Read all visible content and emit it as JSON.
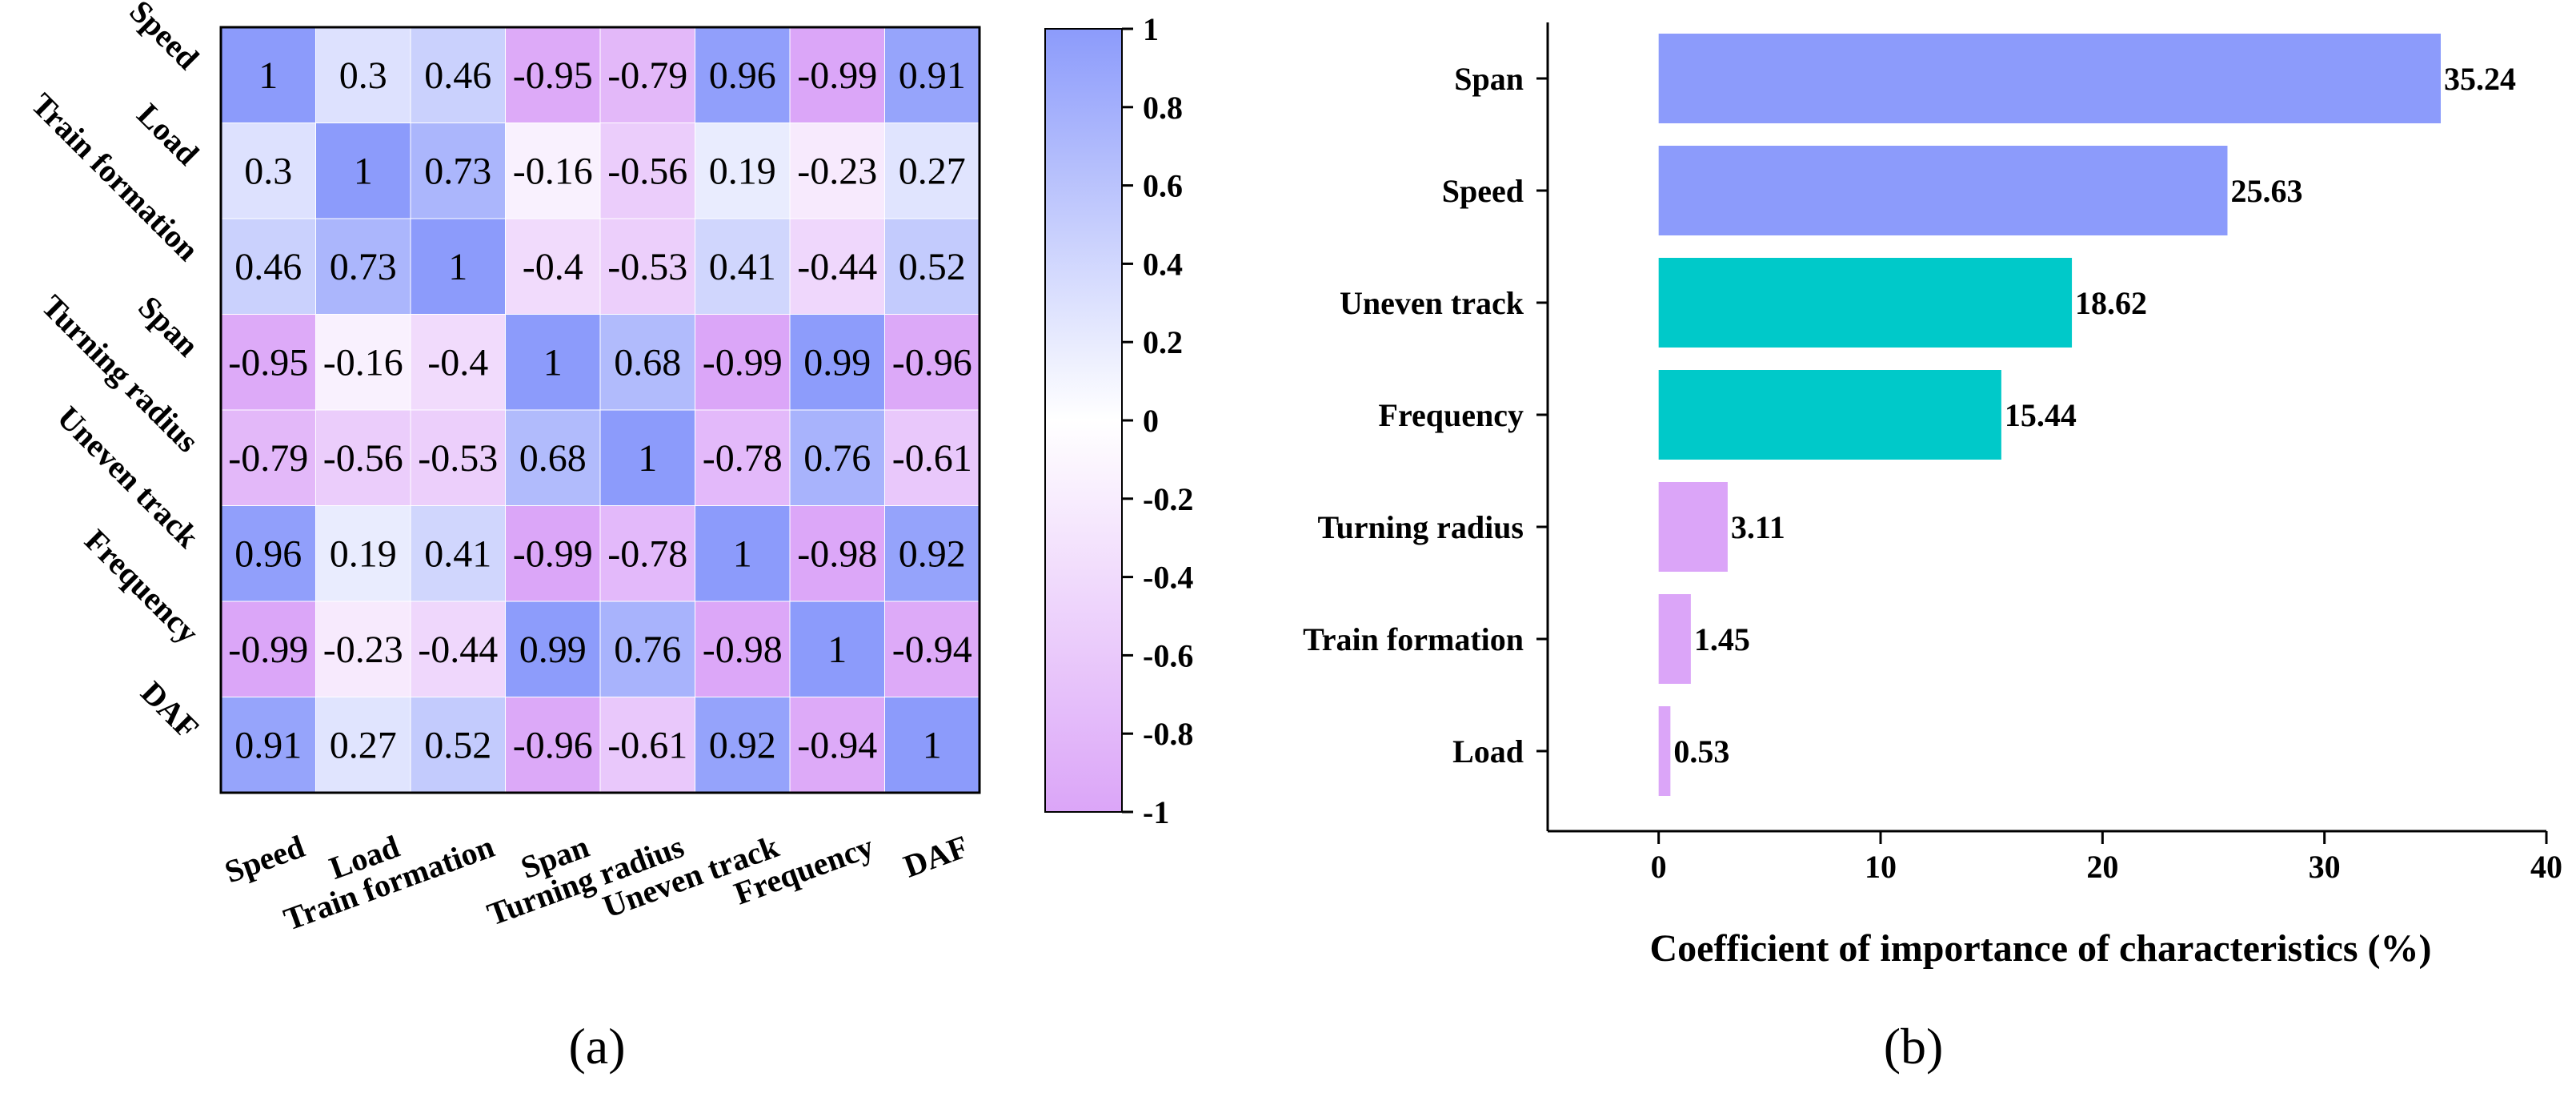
{
  "chart_data": [
    {
      "type": "heatmap",
      "panel_label": "(a)",
      "row_labels": [
        "Speed",
        "Load",
        "Train formation",
        "Span",
        "Turning radius",
        "Uneven track",
        "Frequency",
        "DAF"
      ],
      "col_labels": [
        "Speed",
        "Load",
        "Train formation",
        "Span",
        "Turning radius",
        "Uneven track",
        "Frequency",
        "DAF"
      ],
      "values": [
        [
          1,
          0.3,
          0.46,
          -0.95,
          -0.79,
          0.96,
          -0.99,
          0.91
        ],
        [
          0.3,
          1,
          0.73,
          -0.16,
          -0.56,
          0.19,
          -0.23,
          0.27
        ],
        [
          0.46,
          0.73,
          1,
          -0.4,
          -0.53,
          0.41,
          -0.44,
          0.52
        ],
        [
          -0.95,
          -0.16,
          -0.4,
          1,
          0.68,
          -0.99,
          0.99,
          -0.96
        ],
        [
          -0.79,
          -0.56,
          -0.53,
          0.68,
          1,
          -0.78,
          0.76,
          -0.61
        ],
        [
          0.96,
          0.19,
          0.41,
          -0.99,
          -0.78,
          1,
          -0.98,
          0.92
        ],
        [
          -0.99,
          -0.23,
          -0.44,
          0.99,
          0.76,
          -0.98,
          1,
          -0.94
        ],
        [
          0.91,
          0.27,
          0.52,
          -0.96,
          -0.61,
          0.92,
          -0.94,
          1
        ]
      ],
      "colorbar": {
        "range": [
          -1,
          1
        ],
        "ticks": [
          "1",
          "0.8",
          "0.6",
          "0.4",
          "0.2",
          "0",
          "-0.2",
          "-0.4",
          "-0.6",
          "-0.8",
          "-1"
        ],
        "color_high": "#8c9bfb",
        "color_mid": "#ffffff",
        "color_low": "#dba5f8"
      }
    },
    {
      "type": "bar",
      "orientation": "horizontal",
      "panel_label": "(b)",
      "categories": [
        "Span",
        "Speed",
        "Uneven track",
        "Frequency",
        "Turning radius",
        "Train formation",
        "Load"
      ],
      "values": [
        35.24,
        25.63,
        18.62,
        15.44,
        3.11,
        1.45,
        0.53
      ],
      "value_labels": [
        "35.24",
        "25.63",
        "18.62",
        "15.44",
        "3.11",
        "1.45",
        "0.53"
      ],
      "colors": [
        "#8c9bfb",
        "#8c9bfb",
        "#00c9c9",
        "#00c9c9",
        "#dba5f8",
        "#dba5f8",
        "#dba5f8"
      ],
      "xlabel": "Coefficient of importance of characteristics (%)",
      "xlim": [
        -5,
        40
      ],
      "xticks": [
        "0",
        "10",
        "20",
        "30",
        "40"
      ]
    }
  ]
}
